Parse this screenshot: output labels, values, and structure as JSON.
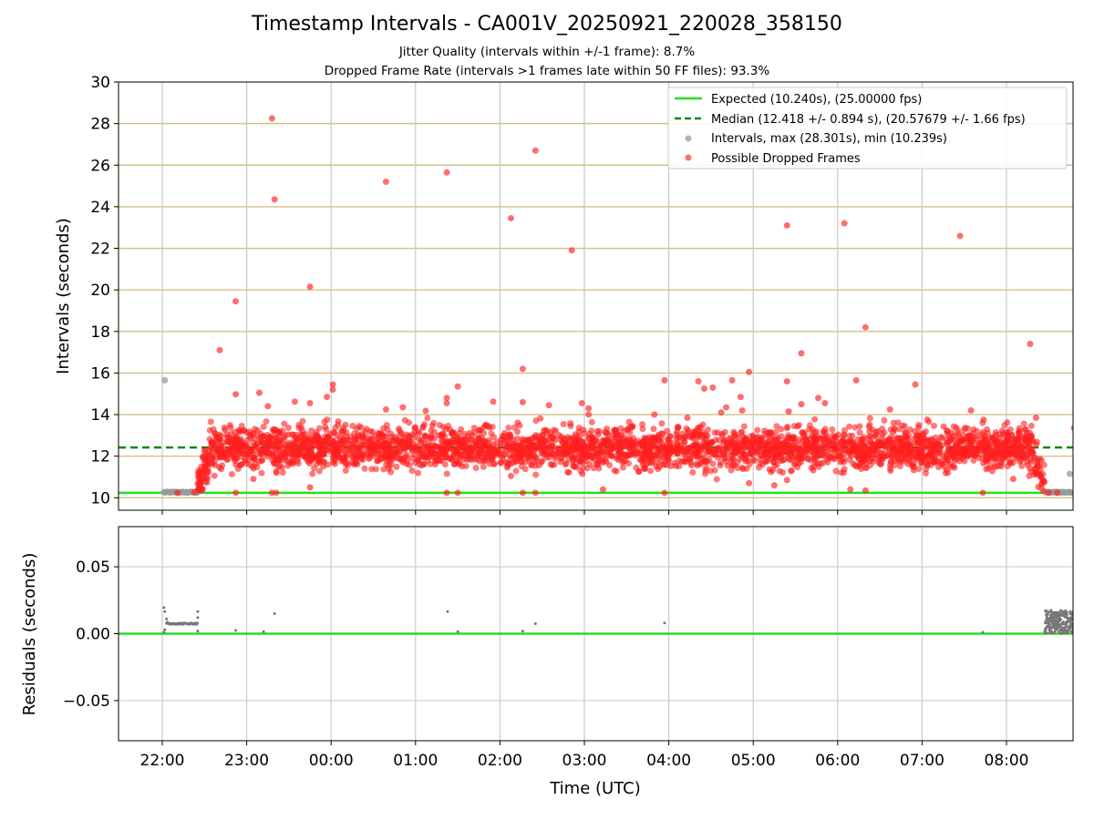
{
  "chart_data": [
    {
      "type": "scatter",
      "title": "Timestamp Intervals - CA001V_20250921_220028_358150",
      "subtitle_lines": [
        "Jitter Quality (intervals within +/-1 frame): 8.7%",
        "Dropped Frame Rate (intervals >1 frames late within 50 FF files): 93.3%"
      ],
      "ylabel": "Intervals (seconds)",
      "ylim": [
        9.4,
        30.0
      ],
      "yticks": [
        10,
        12,
        14,
        16,
        18,
        20,
        22,
        24,
        26,
        28,
        30
      ],
      "xlim_hours": [
        21.48,
        8.8
      ],
      "expected_interval": 10.24,
      "median_interval": 12.418,
      "legend_position": "top-right",
      "legend": [
        "Expected (10.240s), (25.00000 fps)",
        "Median (12.418 +/- 0.894 s), (20.57679 +/- 1.66 fps)",
        "Intervals, max (28.301s), min (10.239s)",
        "Possible Dropped Frames"
      ],
      "series": [
        {
          "name": "Expected",
          "kind": "hline",
          "y": 10.24,
          "color": "#22e022"
        },
        {
          "name": "Median",
          "kind": "hline-dashed",
          "y": 12.418,
          "color": "#0a8a0a"
        },
        {
          "name": "Intervals",
          "kind": "points",
          "color": "#999999",
          "points": [
            [
              22.03,
              15.65
            ],
            [
              22.03,
              10.26
            ],
            [
              22.1,
              10.25
            ],
            [
              22.2,
              10.25
            ],
            [
              22.3,
              10.25
            ],
            [
              22.4,
              10.25
            ],
            [
              8.5,
              10.25
            ],
            [
              8.6,
              10.25
            ],
            [
              8.7,
              10.25
            ],
            [
              8.75,
              11.15
            ]
          ]
        },
        {
          "name": "Possible Dropped Frames",
          "kind": "points",
          "color": "#ff2020",
          "points": [
            [
              22.18,
              10.24
            ],
            [
              22.38,
              10.27
            ],
            [
              22.68,
              17.1
            ],
            [
              22.87,
              19.45
            ],
            [
              22.87,
              14.98
            ],
            [
              22.87,
              10.24
            ],
            [
              23.08,
              10.9
            ],
            [
              23.3,
              28.25
            ],
            [
              23.33,
              24.35
            ],
            [
              23.3,
              10.24
            ],
            [
              23.35,
              10.24
            ],
            [
              23.25,
              14.4
            ],
            [
              23.15,
              15.05
            ],
            [
              23.75,
              20.15
            ],
            [
              23.75,
              14.55
            ],
            [
              23.75,
              10.5
            ],
            [
              23.57,
              14.62
            ],
            [
              23.95,
              14.85
            ],
            [
              24.02,
              15.45
            ],
            [
              24.02,
              15.2
            ],
            [
              24.65,
              25.2
            ],
            [
              24.65,
              14.25
            ],
            [
              24.85,
              14.35
            ],
            [
              25.12,
              14.18
            ],
            [
              25.37,
              25.65
            ],
            [
              25.37,
              14.8
            ],
            [
              25.37,
              14.55
            ],
            [
              25.37,
              10.24
            ],
            [
              25.5,
              10.24
            ],
            [
              25.5,
              15.35
            ],
            [
              25.92,
              14.62
            ],
            [
              26.13,
              23.45
            ],
            [
              26.13,
              11.05
            ],
            [
              26.27,
              16.2
            ],
            [
              26.27,
              14.6
            ],
            [
              26.27,
              10.24
            ],
            [
              26.42,
              26.7
            ],
            [
              26.42,
              10.24
            ],
            [
              26.85,
              21.9
            ],
            [
              26.58,
              14.45
            ],
            [
              26.97,
              14.55
            ],
            [
              27.05,
              14.3
            ],
            [
              27.05,
              14.0
            ],
            [
              27.22,
              10.4
            ],
            [
              27.95,
              10.24
            ],
            [
              27.95,
              15.65
            ],
            [
              27.83,
              14.0
            ],
            [
              28.22,
              13.85
            ],
            [
              28.35,
              15.6
            ],
            [
              28.42,
              15.25
            ],
            [
              28.52,
              15.3
            ],
            [
              28.62,
              14.1
            ],
            [
              28.68,
              14.35
            ],
            [
              28.75,
              15.65
            ],
            [
              28.85,
              14.85
            ],
            [
              28.87,
              14.2
            ],
            [
              28.95,
              16.05
            ],
            [
              28.95,
              10.7
            ],
            [
              29.25,
              10.6
            ],
            [
              29.4,
              23.1
            ],
            [
              29.4,
              15.6
            ],
            [
              29.4,
              10.85
            ],
            [
              29.57,
              16.95
            ],
            [
              29.57,
              14.5
            ],
            [
              29.42,
              14.15
            ],
            [
              29.77,
              14.8
            ],
            [
              29.85,
              14.55
            ],
            [
              30.08,
              23.2
            ],
            [
              30.22,
              15.65
            ],
            [
              30.15,
              10.4
            ],
            [
              30.33,
              18.2
            ],
            [
              30.33,
              10.35
            ],
            [
              30.62,
              14.25
            ],
            [
              30.92,
              15.45
            ],
            [
              31.45,
              22.6
            ],
            [
              31.72,
              10.24
            ],
            [
              31.73,
              13.75
            ],
            [
              31.58,
              14.2
            ],
            [
              32.28,
              17.4
            ],
            [
              32.35,
              13.85
            ],
            [
              32.27,
              11.05
            ],
            [
              32.08,
              10.9
            ],
            [
              32.5,
              10.24
            ],
            [
              32.6,
              10.24
            ],
            [
              32.8,
              13.35
            ],
            [
              32.82,
              10.24
            ]
          ]
        }
      ],
      "dense_band": {
        "description": "thousands of red possible-dropped-frame points",
        "x_range_hours": [
          22.42,
          32.45
        ],
        "approx_count": 3400,
        "center": 12.4,
        "spread": 0.9
      }
    },
    {
      "type": "scatter",
      "ylabel": "Residuals (seconds)",
      "xlabel": "Time (UTC)",
      "ylim": [
        -0.08,
        0.08
      ],
      "yticks": [
        -0.05,
        0.0,
        0.05
      ],
      "ytick_labels": [
        "−0.05",
        "0.00",
        "0.05"
      ],
      "xticks_hours": [
        22,
        23,
        24,
        25,
        26,
        27,
        28,
        29,
        30,
        31,
        32
      ],
      "xtick_labels": [
        "22:00",
        "23:00",
        "00:00",
        "01:00",
        "02:00",
        "03:00",
        "04:00",
        "05:00",
        "06:00",
        "07:00",
        "08:00"
      ],
      "zero_line_color": "#22e022",
      "series": [
        {
          "name": "Residuals",
          "color": "#777777",
          "points": [
            [
              22.02,
              0.0195
            ],
            [
              22.03,
              0.0165
            ],
            [
              22.02,
              0.001
            ],
            [
              22.03,
              0.003
            ],
            [
              22.05,
              0.011
            ],
            [
              22.06,
              0.0085
            ],
            [
              22.42,
              0.0165
            ],
            [
              22.42,
              0.012
            ],
            [
              22.42,
              0.002
            ],
            [
              22.87,
              0.0025
            ],
            [
              23.2,
              0.0015
            ],
            [
              23.33,
              0.015
            ],
            [
              25.38,
              0.0165
            ],
            [
              25.5,
              0.0015
            ],
            [
              26.27,
              0.002
            ],
            [
              26.42,
              0.0075
            ],
            [
              27.95,
              0.008
            ],
            [
              31.72,
              0.001
            ]
          ]
        }
      ],
      "residual_band_start": {
        "x_range_hours": [
          22.05,
          22.42
        ],
        "y": 0.0075
      },
      "residual_band_end": {
        "x_range_hours": [
          32.45,
          32.85
        ],
        "y_range": [
          0.0,
          0.0175
        ]
      }
    }
  ]
}
